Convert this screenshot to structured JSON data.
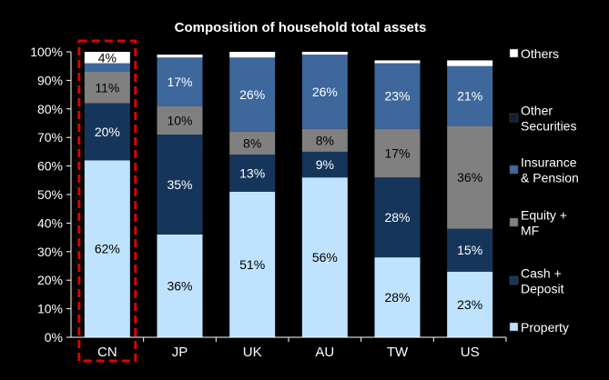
{
  "chart_data": {
    "type": "bar",
    "stacked": true,
    "title": "Composition of household total assets",
    "categories": [
      "CN",
      "JP",
      "UK",
      "AU",
      "TW",
      "US"
    ],
    "ylim": [
      0,
      100
    ],
    "yticks": [
      "0%",
      "10%",
      "20%",
      "30%",
      "40%",
      "50%",
      "60%",
      "70%",
      "80%",
      "90%",
      "100%"
    ],
    "highlight_category": "CN",
    "legend_position": "right",
    "series": [
      {
        "name": "Property",
        "color": "#bfe3ff",
        "label_color": "#000000",
        "values": [
          62,
          36,
          51,
          56,
          28,
          23
        ],
        "labels": [
          "62%",
          "36%",
          "51%",
          "56%",
          "28%",
          "23%"
        ]
      },
      {
        "name": "Cash + Deposit",
        "color": "#15365a",
        "label_color": "#ffffff",
        "values": [
          20,
          35,
          13,
          9,
          28,
          15
        ],
        "labels": [
          "20%",
          "35%",
          "13%",
          "9%",
          "28%",
          "15%"
        ]
      },
      {
        "name": "Equity + MF",
        "color": "#808080",
        "label_color": "#000000",
        "values": [
          11,
          10,
          8,
          8,
          17,
          36
        ],
        "labels": [
          "11%",
          "10%",
          "8%",
          "8%",
          "17%",
          "36%"
        ]
      },
      {
        "name": "Insurance & Pension",
        "color": "#3e679b",
        "label_color": "#ffffff",
        "values": [
          3,
          17,
          26,
          26,
          23,
          21
        ],
        "labels": [
          "",
          "17%",
          "26%",
          "26%",
          "23%",
          "21%"
        ]
      },
      {
        "name": "Other Securities",
        "color": "#0d1e33",
        "label_color": "#ffffff",
        "values": [
          0,
          0,
          0,
          0,
          0,
          0
        ],
        "labels": [
          "",
          "",
          "",
          "",
          "",
          ""
        ]
      },
      {
        "name": "Others",
        "color": "#ffffff",
        "label_color": "#000000",
        "values": [
          4,
          1,
          2,
          1,
          1,
          2
        ],
        "labels": [
          "4%",
          "",
          "",
          "",
          "",
          ""
        ]
      }
    ],
    "legend": [
      {
        "lines": [
          "Others"
        ],
        "color": "#ffffff"
      },
      {
        "lines": [
          "Other",
          "Securities"
        ],
        "color": "#0d1e33"
      },
      {
        "lines": [
          "Insurance",
          "& Pension"
        ],
        "color": "#3e679b"
      },
      {
        "lines": [
          "Equity +",
          "MF"
        ],
        "color": "#808080"
      },
      {
        "lines": [
          "Cash +",
          "Deposit"
        ],
        "color": "#15365a"
      },
      {
        "lines": [
          "Property"
        ],
        "color": "#bfe3ff"
      }
    ]
  }
}
